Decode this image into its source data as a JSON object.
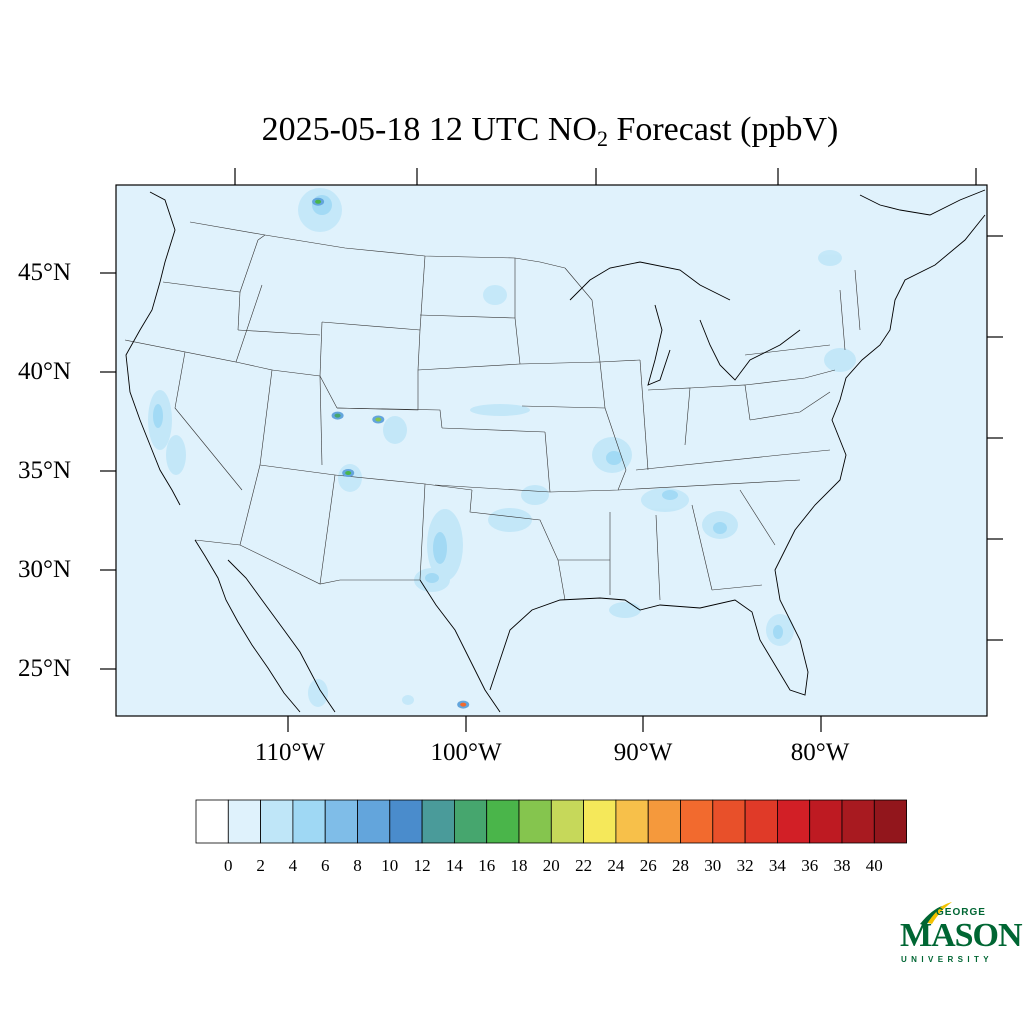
{
  "title": {
    "main": "2025-05-18 12 UTC NO",
    "subscript": "2",
    "rest": " Forecast (ppbV)"
  },
  "latitude_labels": [
    "45°N",
    "40°N",
    "35°N",
    "30°N",
    "25°N"
  ],
  "longitude_labels": [
    "110°W",
    "100°W",
    "90°W",
    "80°W"
  ],
  "colorbar": {
    "tick_labels": [
      "0",
      "2",
      "4",
      "6",
      "8",
      "10",
      "12",
      "14",
      "16",
      "18",
      "20",
      "22",
      "24",
      "26",
      "28",
      "30",
      "32",
      "34",
      "36",
      "38",
      "40"
    ],
    "colors": [
      "#ffffff",
      "#dff2fc",
      "#bfe6f8",
      "#9fd8f4",
      "#7fbde8",
      "#63a5dc",
      "#4a8ccc",
      "#4a9b9a",
      "#46a66e",
      "#4ab54a",
      "#85c54e",
      "#c6d85a",
      "#f5e85a",
      "#f7c04a",
      "#f5993c",
      "#f26a2e",
      "#e8502a",
      "#e03a28",
      "#d21f26",
      "#be1a22",
      "#a81a20",
      "#92161c"
    ]
  },
  "hotspots": [
    {
      "lon": -100.1,
      "lat": 23.2,
      "value": 28
    },
    {
      "lon": -104.9,
      "lat": 37.6,
      "value": 18
    },
    {
      "lon": -106.6,
      "lat": 34.9,
      "value": 16
    },
    {
      "lon": -108.3,
      "lat": 48.6,
      "value": 16
    },
    {
      "lon": -107.2,
      "lat": 37.8,
      "value": 14
    }
  ],
  "logo": {
    "line1": "GEORGE",
    "line2": "MASON",
    "line3": "UNIVERSITY"
  }
}
